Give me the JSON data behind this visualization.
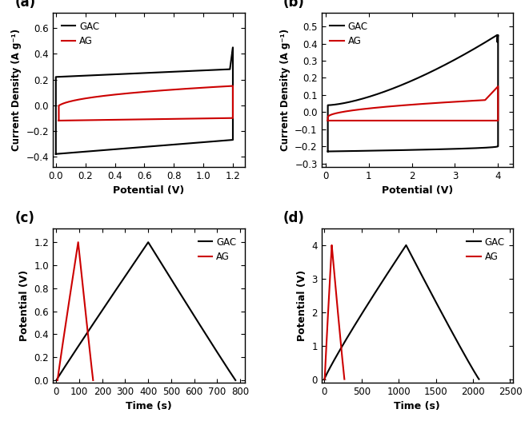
{
  "fig_width": 6.61,
  "fig_height": 5.32,
  "background_color": "#ffffff",
  "panel_a": {
    "label": "(a)",
    "xlabel": "Potential (V)",
    "ylabel": "Current Density (A g⁻¹)",
    "xlim": [
      -0.02,
      1.28
    ],
    "ylim": [
      -0.48,
      0.72
    ],
    "xticks": [
      0.0,
      0.2,
      0.4,
      0.6,
      0.8,
      1.0,
      1.2
    ],
    "yticks": [
      -0.4,
      -0.2,
      0.0,
      0.2,
      0.4,
      0.6
    ],
    "gac_color": "#000000",
    "ag_color": "#cc0000"
  },
  "panel_b": {
    "label": "(b)",
    "xlabel": "Potential (V)",
    "ylabel": "Current Density (A g⁻¹)",
    "xlim": [
      -0.1,
      4.35
    ],
    "ylim": [
      -0.32,
      0.58
    ],
    "xticks": [
      0,
      1,
      2,
      3,
      4
    ],
    "yticks": [
      -0.3,
      -0.2,
      -0.1,
      0.0,
      0.1,
      0.2,
      0.3,
      0.4,
      0.5
    ],
    "gac_color": "#000000",
    "ag_color": "#cc0000"
  },
  "panel_c": {
    "label": "(c)",
    "xlabel": "Time (s)",
    "ylabel": "Potential (V)",
    "xlim": [
      -15,
      820
    ],
    "ylim": [
      -0.02,
      1.32
    ],
    "xticks": [
      0,
      100,
      200,
      300,
      400,
      500,
      600,
      700,
      800
    ],
    "yticks": [
      0.0,
      0.2,
      0.4,
      0.6,
      0.8,
      1.0,
      1.2
    ],
    "gac_color": "#000000",
    "ag_color": "#cc0000"
  },
  "panel_d": {
    "label": "(d)",
    "xlabel": "Time (s)",
    "ylabel": "Potential (V)",
    "xlim": [
      -40,
      2540
    ],
    "ylim": [
      -0.1,
      4.5
    ],
    "xticks": [
      0,
      500,
      1000,
      1500,
      2000,
      2500
    ],
    "yticks": [
      0,
      1,
      2,
      3,
      4
    ],
    "gac_color": "#000000",
    "ag_color": "#cc0000"
  }
}
